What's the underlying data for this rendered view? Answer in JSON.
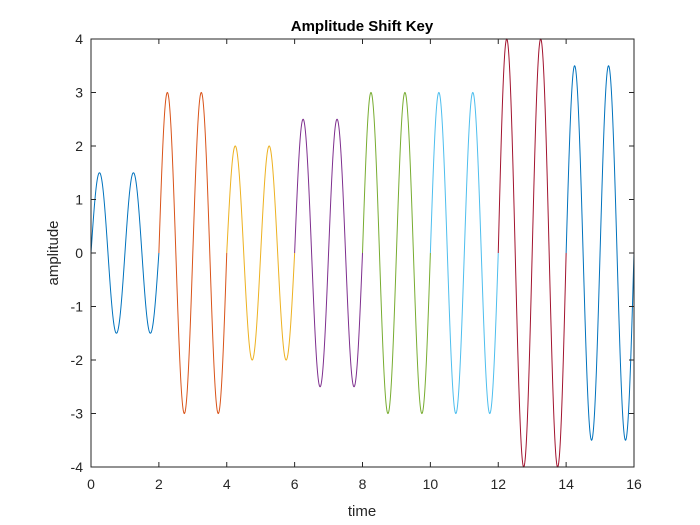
{
  "chart_data": {
    "type": "line",
    "title": "Amplitude Shift Key",
    "xlabel": "time",
    "ylabel": "amplitude",
    "xlim": [
      0,
      16
    ],
    "ylim": [
      -4,
      4
    ],
    "x_ticks": [
      "0",
      "2",
      "4",
      "6",
      "8",
      "10",
      "12",
      "14",
      "16"
    ],
    "y_ticks": [
      "4",
      "3",
      "2",
      "1",
      "0",
      "-1",
      "-2",
      "-3",
      "-4"
    ],
    "grid": false,
    "signal": {
      "waveform": "sine",
      "cycles_per_time_unit": 1
    },
    "series": [
      {
        "x_range": [
          0,
          2
        ],
        "amplitude": 1.5,
        "color": "#0072BD"
      },
      {
        "x_range": [
          2,
          4
        ],
        "amplitude": 3,
        "color": "#D95319"
      },
      {
        "x_range": [
          4,
          6
        ],
        "amplitude": 2,
        "color": "#EDB120"
      },
      {
        "x_range": [
          6,
          8
        ],
        "amplitude": 2.5,
        "color": "#7E2F8E"
      },
      {
        "x_range": [
          8,
          10
        ],
        "amplitude": 3,
        "color": "#77AC30"
      },
      {
        "x_range": [
          10,
          12
        ],
        "amplitude": 3,
        "color": "#4DBEEE"
      },
      {
        "x_range": [
          12,
          14
        ],
        "amplitude": 4,
        "color": "#A2142F"
      },
      {
        "x_range": [
          14,
          16
        ],
        "amplitude": 3.5,
        "color": "#0072BD"
      }
    ]
  }
}
